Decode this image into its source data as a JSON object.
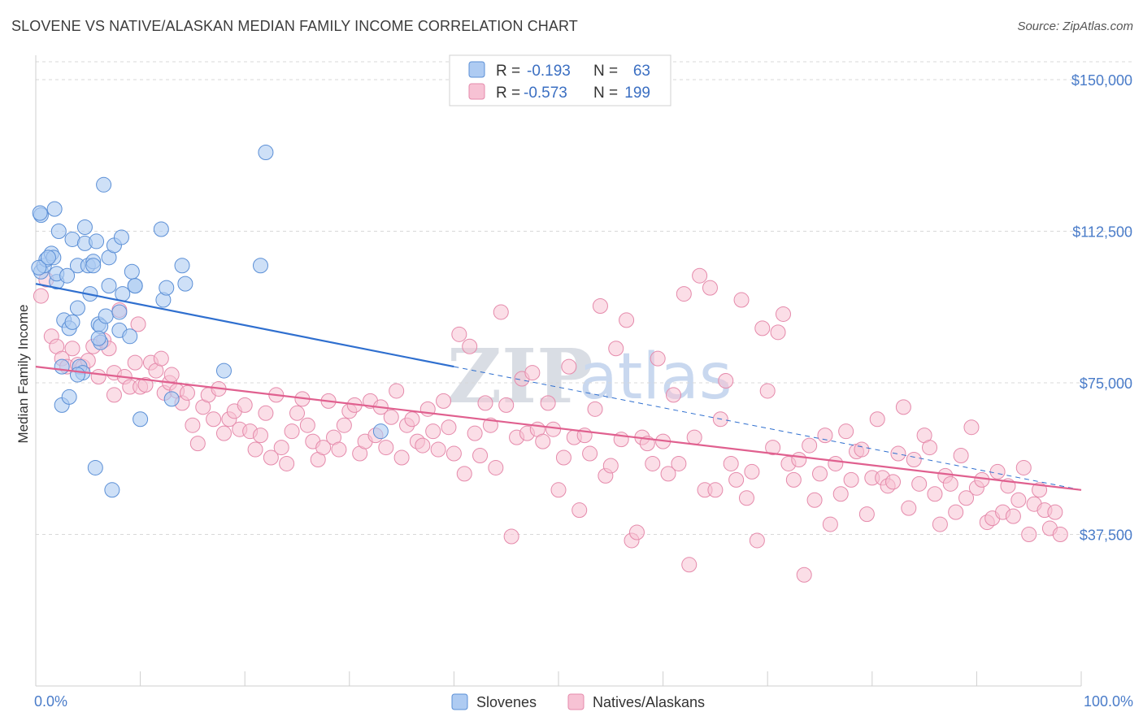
{
  "title": "SLOVENE VS NATIVE/ALASKAN MEDIAN FAMILY INCOME CORRELATION CHART",
  "source": "Source: ZipAtlas.com",
  "watermark": {
    "zip": "ZIP",
    "atlas": "atlas"
  },
  "colors": {
    "blue_fill": "#aecbf2",
    "blue_stroke": "#5b8fd6",
    "blue_line": "#2f6fcf",
    "pink_fill": "#f7c2d4",
    "pink_stroke": "#e58aab",
    "pink_line": "#e0608f",
    "axis_label": "#4a7cc9",
    "grid": "#d8d8d8"
  },
  "legend": {
    "rows": [
      {
        "r_label": "R =",
        "r_value": "-0.193",
        "n_label": "N =",
        "n_value": "63"
      },
      {
        "r_label": "R =",
        "r_value": "-0.573",
        "n_label": "N =",
        "n_value": "199"
      }
    ]
  },
  "bottom_legend": [
    "Slovenes",
    "Natives/Alaskans"
  ],
  "chart_data": {
    "type": "scatter",
    "ylabel": "Median Family Income",
    "xlim": [
      0,
      100
    ],
    "ylim": [
      0,
      155000
    ],
    "x_tick_labels": [
      "0.0%",
      "100.0%"
    ],
    "y_ticks": [
      {
        "value": 37500,
        "label": "$37,500"
      },
      {
        "value": 75000,
        "label": "$75,000"
      },
      {
        "value": 112500,
        "label": "$112,500"
      },
      {
        "value": 150000,
        "label": "$150,000"
      }
    ],
    "grid": true,
    "legend_position": "top-center",
    "series": [
      {
        "name": "Slovenes",
        "color": "blue",
        "trend": {
          "x0": 0,
          "y0": 99500,
          "x1": 40,
          "y1": 79000,
          "dashed_to_x": 100,
          "dashed_to_y": 48500
        },
        "points": [
          [
            0.5,
            116500
          ],
          [
            0.5,
            102500
          ],
          [
            0.8,
            104000
          ],
          [
            1.0,
            105500
          ],
          [
            1.5,
            107000
          ],
          [
            1.7,
            106000
          ],
          [
            1.8,
            118000
          ],
          [
            2.0,
            100000
          ],
          [
            2.0,
            102000
          ],
          [
            2.2,
            112500
          ],
          [
            2.5,
            79000
          ],
          [
            2.5,
            69500
          ],
          [
            2.7,
            90500
          ],
          [
            3.0,
            101500
          ],
          [
            3.2,
            88500
          ],
          [
            3.2,
            71500
          ],
          [
            3.5,
            90000
          ],
          [
            3.5,
            110500
          ],
          [
            4.0,
            104000
          ],
          [
            4.0,
            93500
          ],
          [
            4.2,
            79000
          ],
          [
            4.5,
            77500
          ],
          [
            4.7,
            113500
          ],
          [
            4.7,
            109500
          ],
          [
            5.0,
            104000
          ],
          [
            5.2,
            97000
          ],
          [
            5.5,
            105000
          ],
          [
            5.5,
            104000
          ],
          [
            5.7,
            54000
          ],
          [
            5.8,
            110000
          ],
          [
            6.0,
            89500
          ],
          [
            6.2,
            85000
          ],
          [
            6.2,
            89000
          ],
          [
            6.5,
            124000
          ],
          [
            6.7,
            91500
          ],
          [
            7.0,
            99000
          ],
          [
            7.0,
            106000
          ],
          [
            7.5,
            109000
          ],
          [
            8.0,
            88000
          ],
          [
            8.0,
            92500
          ],
          [
            8.2,
            111000
          ],
          [
            8.3,
            97000
          ],
          [
            9.0,
            86500
          ],
          [
            9.2,
            102500
          ],
          [
            9.5,
            99000
          ],
          [
            10.0,
            66000
          ],
          [
            12.0,
            113000
          ],
          [
            12.2,
            95500
          ],
          [
            12.5,
            98500
          ],
          [
            13.0,
            71000
          ],
          [
            14.0,
            104000
          ],
          [
            14.3,
            99500
          ],
          [
            18.0,
            78000
          ],
          [
            21.5,
            104000
          ],
          [
            22.0,
            132000
          ],
          [
            33.0,
            63000
          ],
          [
            7.3,
            48500
          ],
          [
            0.3,
            103500
          ],
          [
            0.4,
            117000
          ],
          [
            1.2,
            106000
          ],
          [
            4.0,
            77000
          ],
          [
            6.0,
            86000
          ],
          [
            9.5,
            99000
          ]
        ]
      },
      {
        "name": "Natives/Alaskans",
        "color": "pink",
        "trend": {
          "x0": 0,
          "y0": 79000,
          "x1": 100,
          "y1": 48500
        },
        "points": [
          [
            0.5,
            96500
          ],
          [
            1.0,
            100500
          ],
          [
            1.5,
            86500
          ],
          [
            2.0,
            84000
          ],
          [
            2.5,
            81000
          ],
          [
            3.0,
            79000
          ],
          [
            3.5,
            83500
          ],
          [
            4.0,
            79500
          ],
          [
            4.5,
            79000
          ],
          [
            5.0,
            80500
          ],
          [
            5.5,
            84000
          ],
          [
            6.0,
            76500
          ],
          [
            6.5,
            85500
          ],
          [
            7.0,
            83500
          ],
          [
            7.5,
            77500
          ],
          [
            7.5,
            72000
          ],
          [
            8.0,
            93000
          ],
          [
            8.5,
            76500
          ],
          [
            9.0,
            74000
          ],
          [
            9.5,
            80000
          ],
          [
            9.8,
            89500
          ],
          [
            10.0,
            74000
          ],
          [
            10.5,
            74500
          ],
          [
            11.0,
            80000
          ],
          [
            11.5,
            78000
          ],
          [
            12.0,
            81000
          ],
          [
            12.3,
            72500
          ],
          [
            12.8,
            75000
          ],
          [
            13.0,
            77000
          ],
          [
            13.5,
            73000
          ],
          [
            14.0,
            70000
          ],
          [
            14.5,
            72500
          ],
          [
            15.0,
            64500
          ],
          [
            15.5,
            60000
          ],
          [
            16.0,
            69000
          ],
          [
            16.5,
            72000
          ],
          [
            17.0,
            66000
          ],
          [
            17.5,
            73500
          ],
          [
            18.0,
            62500
          ],
          [
            18.5,
            66000
          ],
          [
            19.0,
            68000
          ],
          [
            19.5,
            63500
          ],
          [
            20.0,
            69500
          ],
          [
            20.5,
            63000
          ],
          [
            21.0,
            58500
          ],
          [
            21.5,
            62000
          ],
          [
            22.0,
            67500
          ],
          [
            22.5,
            56500
          ],
          [
            23.0,
            72000
          ],
          [
            23.5,
            59000
          ],
          [
            24.0,
            55000
          ],
          [
            24.5,
            63000
          ],
          [
            25.0,
            67500
          ],
          [
            25.5,
            71000
          ],
          [
            26.0,
            64500
          ],
          [
            26.5,
            60500
          ],
          [
            27.0,
            56000
          ],
          [
            27.5,
            59000
          ],
          [
            28.0,
            70500
          ],
          [
            28.5,
            61500
          ],
          [
            29.0,
            58500
          ],
          [
            29.5,
            64500
          ],
          [
            30.0,
            68000
          ],
          [
            30.5,
            69500
          ],
          [
            31.0,
            57500
          ],
          [
            31.5,
            60500
          ],
          [
            32.0,
            70500
          ],
          [
            32.5,
            62000
          ],
          [
            33.0,
            69000
          ],
          [
            33.5,
            59000
          ],
          [
            34.0,
            66500
          ],
          [
            34.5,
            73000
          ],
          [
            35.0,
            56500
          ],
          [
            35.5,
            64500
          ],
          [
            36.0,
            66000
          ],
          [
            36.5,
            60500
          ],
          [
            37.0,
            59500
          ],
          [
            37.5,
            68500
          ],
          [
            38.0,
            63000
          ],
          [
            38.5,
            58500
          ],
          [
            39.0,
            70500
          ],
          [
            39.5,
            64000
          ],
          [
            40.0,
            57500
          ],
          [
            40.5,
            87000
          ],
          [
            41.0,
            52500
          ],
          [
            41.5,
            84000
          ],
          [
            42.0,
            62500
          ],
          [
            42.5,
            57000
          ],
          [
            43.0,
            70000
          ],
          [
            43.5,
            64500
          ],
          [
            44.0,
            54000
          ],
          [
            44.5,
            92500
          ],
          [
            45.0,
            69500
          ],
          [
            45.5,
            37000
          ],
          [
            46.0,
            61500
          ],
          [
            46.5,
            76000
          ],
          [
            47.0,
            62500
          ],
          [
            47.5,
            77500
          ],
          [
            48.0,
            63500
          ],
          [
            48.5,
            60500
          ],
          [
            49.0,
            70000
          ],
          [
            49.5,
            63500
          ],
          [
            50.0,
            48500
          ],
          [
            50.5,
            56500
          ],
          [
            51.0,
            79000
          ],
          [
            51.5,
            61500
          ],
          [
            52.0,
            43500
          ],
          [
            52.5,
            62000
          ],
          [
            53.0,
            57500
          ],
          [
            53.5,
            68500
          ],
          [
            54.0,
            94000
          ],
          [
            54.5,
            52000
          ],
          [
            55.0,
            54500
          ],
          [
            55.5,
            83500
          ],
          [
            56.0,
            61000
          ],
          [
            56.5,
            90500
          ],
          [
            57.0,
            36000
          ],
          [
            57.5,
            38000
          ],
          [
            58.0,
            61500
          ],
          [
            58.5,
            60000
          ],
          [
            59.0,
            55000
          ],
          [
            59.5,
            81000
          ],
          [
            60.0,
            60500
          ],
          [
            60.5,
            52500
          ],
          [
            61.0,
            72000
          ],
          [
            61.5,
            55000
          ],
          [
            62.0,
            97000
          ],
          [
            62.5,
            30000
          ],
          [
            63.0,
            61500
          ],
          [
            63.5,
            101500
          ],
          [
            64.0,
            48500
          ],
          [
            64.5,
            98500
          ],
          [
            65.0,
            48500
          ],
          [
            65.5,
            66000
          ],
          [
            66.0,
            75500
          ],
          [
            66.5,
            55000
          ],
          [
            67.0,
            51000
          ],
          [
            67.5,
            95500
          ],
          [
            68.0,
            46500
          ],
          [
            68.5,
            53000
          ],
          [
            69.0,
            36000
          ],
          [
            69.5,
            88500
          ],
          [
            70.0,
            73000
          ],
          [
            70.5,
            59000
          ],
          [
            71.0,
            87500
          ],
          [
            71.5,
            92000
          ],
          [
            72.0,
            55000
          ],
          [
            72.5,
            51000
          ],
          [
            73.0,
            56000
          ],
          [
            73.5,
            27500
          ],
          [
            74.0,
            59500
          ],
          [
            74.5,
            46000
          ],
          [
            75.0,
            52500
          ],
          [
            75.5,
            62000
          ],
          [
            76.0,
            40000
          ],
          [
            76.5,
            55000
          ],
          [
            77.0,
            47500
          ],
          [
            77.5,
            63000
          ],
          [
            78.0,
            51000
          ],
          [
            78.5,
            58000
          ],
          [
            79.0,
            58500
          ],
          [
            79.5,
            42500
          ],
          [
            80.0,
            51500
          ],
          [
            80.5,
            66000
          ],
          [
            81.0,
            51500
          ],
          [
            81.5,
            49500
          ],
          [
            82.0,
            50500
          ],
          [
            82.5,
            57500
          ],
          [
            83.0,
            69000
          ],
          [
            83.5,
            44000
          ],
          [
            84.0,
            56000
          ],
          [
            84.5,
            50000
          ],
          [
            85.0,
            62000
          ],
          [
            85.5,
            59000
          ],
          [
            86.0,
            47500
          ],
          [
            86.5,
            40000
          ],
          [
            87.0,
            52000
          ],
          [
            87.5,
            50000
          ],
          [
            88.0,
            43000
          ],
          [
            88.5,
            57000
          ],
          [
            89.0,
            46500
          ],
          [
            89.5,
            64000
          ],
          [
            90.0,
            49000
          ],
          [
            90.5,
            51000
          ],
          [
            91.0,
            40500
          ],
          [
            91.5,
            41500
          ],
          [
            92.0,
            53000
          ],
          [
            92.5,
            43000
          ],
          [
            93.0,
            49500
          ],
          [
            93.5,
            42000
          ],
          [
            94.0,
            46000
          ],
          [
            94.5,
            54000
          ],
          [
            95.0,
            37500
          ],
          [
            95.5,
            45000
          ],
          [
            96.0,
            48500
          ],
          [
            96.5,
            43500
          ],
          [
            97.0,
            39000
          ],
          [
            97.5,
            43000
          ],
          [
            98.0,
            37500
          ]
        ]
      }
    ]
  }
}
